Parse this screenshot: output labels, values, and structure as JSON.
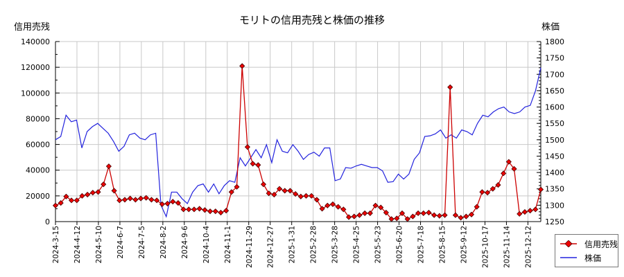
{
  "chart_data": {
    "type": "line",
    "title": "モリトの信用売残と株価の推移",
    "ylabel_left": "信用売残",
    "ylabel_right": "株価",
    "xlabel": "",
    "left_axis": {
      "ylim": [
        0,
        140000
      ],
      "ticks": [
        0,
        20000,
        40000,
        60000,
        80000,
        100000,
        120000,
        140000
      ]
    },
    "right_axis": {
      "ylim": [
        1250,
        1800
      ],
      "ticks": [
        1250,
        1300,
        1350,
        1400,
        1450,
        1500,
        1550,
        1600,
        1650,
        1700,
        1750,
        1800
      ]
    },
    "x_tick_labels": [
      "2024-3-15",
      "2024-4-12",
      "2024-5-10",
      "2024-6-7",
      "2024-7-5",
      "2024-8-2",
      "2024-9-6",
      "2024-10-4",
      "2024-11-1",
      "2024-11-29",
      "2024-12-27",
      "2025-1-31",
      "2025-2-28",
      "2025-3-28",
      "2025-4-25",
      "2025-5-23",
      "2025-6-20",
      "2025-7-18",
      "2025-8-15",
      "2025-9-12",
      "2025-10-17",
      "2025-11-14",
      "2025-12-12"
    ],
    "grid": true,
    "legend_position": "lower-right-outside",
    "series": [
      {
        "name": "信用売残",
        "axis": "left",
        "color": "#cc0000",
        "marker": "diamond",
        "values": [
          12500,
          14500,
          19500,
          16500,
          16500,
          20000,
          21000,
          22500,
          23000,
          29000,
          43000,
          24000,
          16500,
          17000,
          18000,
          17000,
          18000,
          18500,
          17000,
          16500,
          13500,
          14000,
          15500,
          14500,
          9500,
          9500,
          9500,
          10000,
          9000,
          8000,
          8000,
          7000,
          8500,
          23000,
          27000,
          121000,
          58000,
          45000,
          44000,
          29000,
          22000,
          21000,
          25500,
          24000,
          24000,
          21500,
          19500,
          20000,
          20000,
          17000,
          10000,
          12500,
          13500,
          11500,
          9500,
          3500,
          4000,
          5000,
          6500,
          6500,
          12500,
          11000,
          7000,
          2000,
          2500,
          6500,
          2000,
          4000,
          6500,
          6500,
          7000,
          5000,
          4500,
          5000,
          104500,
          5000,
          3000,
          4000,
          5500,
          11500,
          23000,
          22500,
          25500,
          28500,
          37500,
          46500,
          41000,
          6000,
          7500,
          8500,
          9500,
          25000
        ]
      },
      {
        "name": "株価",
        "axis": "right",
        "color": "#2222dd",
        "marker": "none",
        "values": [
          1500,
          1510,
          1575,
          1555,
          1560,
          1475,
          1525,
          1540,
          1550,
          1535,
          1520,
          1495,
          1465,
          1480,
          1515,
          1520,
          1505,
          1500,
          1515,
          1520,
          1300,
          1265,
          1340,
          1340,
          1320,
          1305,
          1340,
          1360,
          1365,
          1340,
          1365,
          1335,
          1360,
          1375,
          1370,
          1445,
          1420,
          1445,
          1470,
          1445,
          1485,
          1430,
          1500,
          1465,
          1460,
          1485,
          1465,
          1440,
          1455,
          1462,
          1450,
          1475,
          1475,
          1375,
          1380,
          1415,
          1413,
          1420,
          1425,
          1420,
          1415,
          1415,
          1405,
          1370,
          1372,
          1395,
          1380,
          1395,
          1440,
          1460,
          1510,
          1512,
          1518,
          1530,
          1505,
          1515,
          1505,
          1530,
          1525,
          1515,
          1550,
          1575,
          1570,
          1585,
          1595,
          1600,
          1585,
          1580,
          1585,
          1600,
          1605,
          1650,
          1720
        ]
      }
    ]
  },
  "legend": {
    "items": [
      {
        "label": "信用売残",
        "icon": "red-diamond-line-icon"
      },
      {
        "label": "株価",
        "icon": "blue-line-icon"
      }
    ]
  }
}
